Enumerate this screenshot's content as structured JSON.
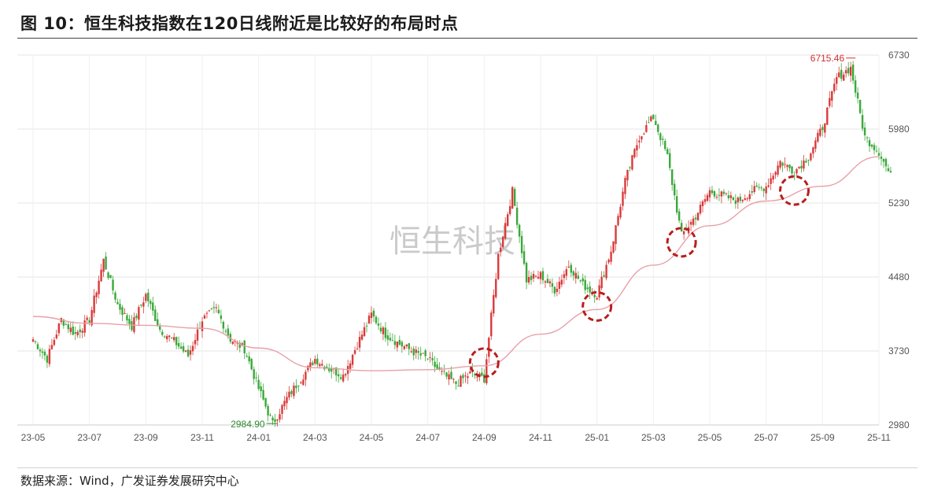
{
  "title": "图 10：恒生科技指数在120日线附近是比较好的布局时点",
  "source": "数据来源：Wind，广发证券发展研究中心",
  "chart_data": {
    "type": "candlestick",
    "watermark": "恒生科技",
    "y_ticks": [
      2980,
      3730,
      4480,
      5230,
      5980,
      6730
    ],
    "ylim": [
      2980,
      6730
    ],
    "x_ticks": [
      "23-05",
      "23-07",
      "23-09",
      "23-11",
      "24-01",
      "24-03",
      "24-05",
      "24-07",
      "24-09",
      "24-11",
      "25-01",
      "25-03",
      "25-05",
      "25-07",
      "25-09",
      "25-11"
    ],
    "annotations": [
      {
        "label": "2984.90",
        "kind": "low",
        "color": "#2e8b2e"
      },
      {
        "label": "6715.46",
        "kind": "high",
        "color": "#d43030"
      }
    ],
    "up_color": "#d93a3a",
    "down_color": "#3aa83a",
    "ma_color": "#e8a0a8",
    "marker_color": "#b81e1e",
    "price_anchors": [
      [
        "23-05",
        3850
      ],
      [
        "23-05b",
        3650
      ],
      [
        "23-06",
        4050
      ],
      [
        "23-06b",
        3900
      ],
      [
        "23-07",
        4050
      ],
      [
        "23-07b",
        4650
      ],
      [
        "23-08",
        4200
      ],
      [
        "23-08b",
        3980
      ],
      [
        "23-09",
        4300
      ],
      [
        "23-09b",
        3950
      ],
      [
        "23-10",
        3830
      ],
      [
        "23-10b",
        3680
      ],
      [
        "23-11",
        4050
      ],
      [
        "23-11b",
        4150
      ],
      [
        "23-12",
        3850
      ],
      [
        "23-12b",
        3750
      ],
      [
        "24-01",
        3350
      ],
      [
        "24-01b",
        2990
      ],
      [
        "24-02",
        3250
      ],
      [
        "24-02b",
        3450
      ],
      [
        "24-03",
        3650
      ],
      [
        "24-03b",
        3550
      ],
      [
        "24-04",
        3480
      ],
      [
        "24-04b",
        3800
      ],
      [
        "24-05",
        4100
      ],
      [
        "24-05b",
        3900
      ],
      [
        "24-06",
        3800
      ],
      [
        "24-06b",
        3720
      ],
      [
        "24-07",
        3650
      ],
      [
        "24-07b",
        3500
      ],
      [
        "24-08",
        3400
      ],
      [
        "24-08b",
        3500
      ],
      [
        "24-09",
        3450
      ],
      [
        "24-09b",
        4700
      ],
      [
        "24-10",
        5350
      ],
      [
        "24-10b",
        4450
      ],
      [
        "24-11",
        4500
      ],
      [
        "24-11b",
        4350
      ],
      [
        "24-12",
        4600
      ],
      [
        "24-12b",
        4400
      ],
      [
        "25-01",
        4300
      ],
      [
        "25-01b",
        4750
      ],
      [
        "25-02",
        5450
      ],
      [
        "25-02b",
        5900
      ],
      [
        "25-03",
        6100
      ],
      [
        "25-03b",
        5700
      ],
      [
        "25-04",
        4900
      ],
      [
        "25-04b",
        5100
      ],
      [
        "25-05",
        5350
      ],
      [
        "25-05b",
        5300
      ],
      [
        "25-06",
        5250
      ],
      [
        "25-06b",
        5350
      ],
      [
        "25-07",
        5400
      ],
      [
        "25-07b",
        5650
      ],
      [
        "25-08",
        5550
      ],
      [
        "25-08b",
        5700
      ],
      [
        "25-09",
        6000
      ],
      [
        "25-09b",
        6500
      ],
      [
        "25-10",
        6600
      ],
      [
        "25-10b",
        5900
      ],
      [
        "25-11",
        5750
      ],
      [
        "25-11b",
        5450
      ]
    ],
    "ma120": [
      [
        "23-05",
        4080
      ],
      [
        "23-07",
        4010
      ],
      [
        "23-09",
        3990
      ],
      [
        "23-11",
        3960
      ],
      [
        "24-01",
        3760
      ],
      [
        "24-03",
        3560
      ],
      [
        "24-05",
        3530
      ],
      [
        "24-07",
        3540
      ],
      [
        "24-09",
        3580
      ],
      [
        "24-11",
        3900
      ],
      [
        "25-01",
        4150
      ],
      [
        "25-03",
        4600
      ],
      [
        "25-05",
        5000
      ],
      [
        "25-07",
        5250
      ],
      [
        "25-09",
        5400
      ],
      [
        "25-11",
        5700
      ]
    ],
    "circled_points": [
      "24-09",
      "25-01",
      "25-04",
      "25-08"
    ]
  }
}
